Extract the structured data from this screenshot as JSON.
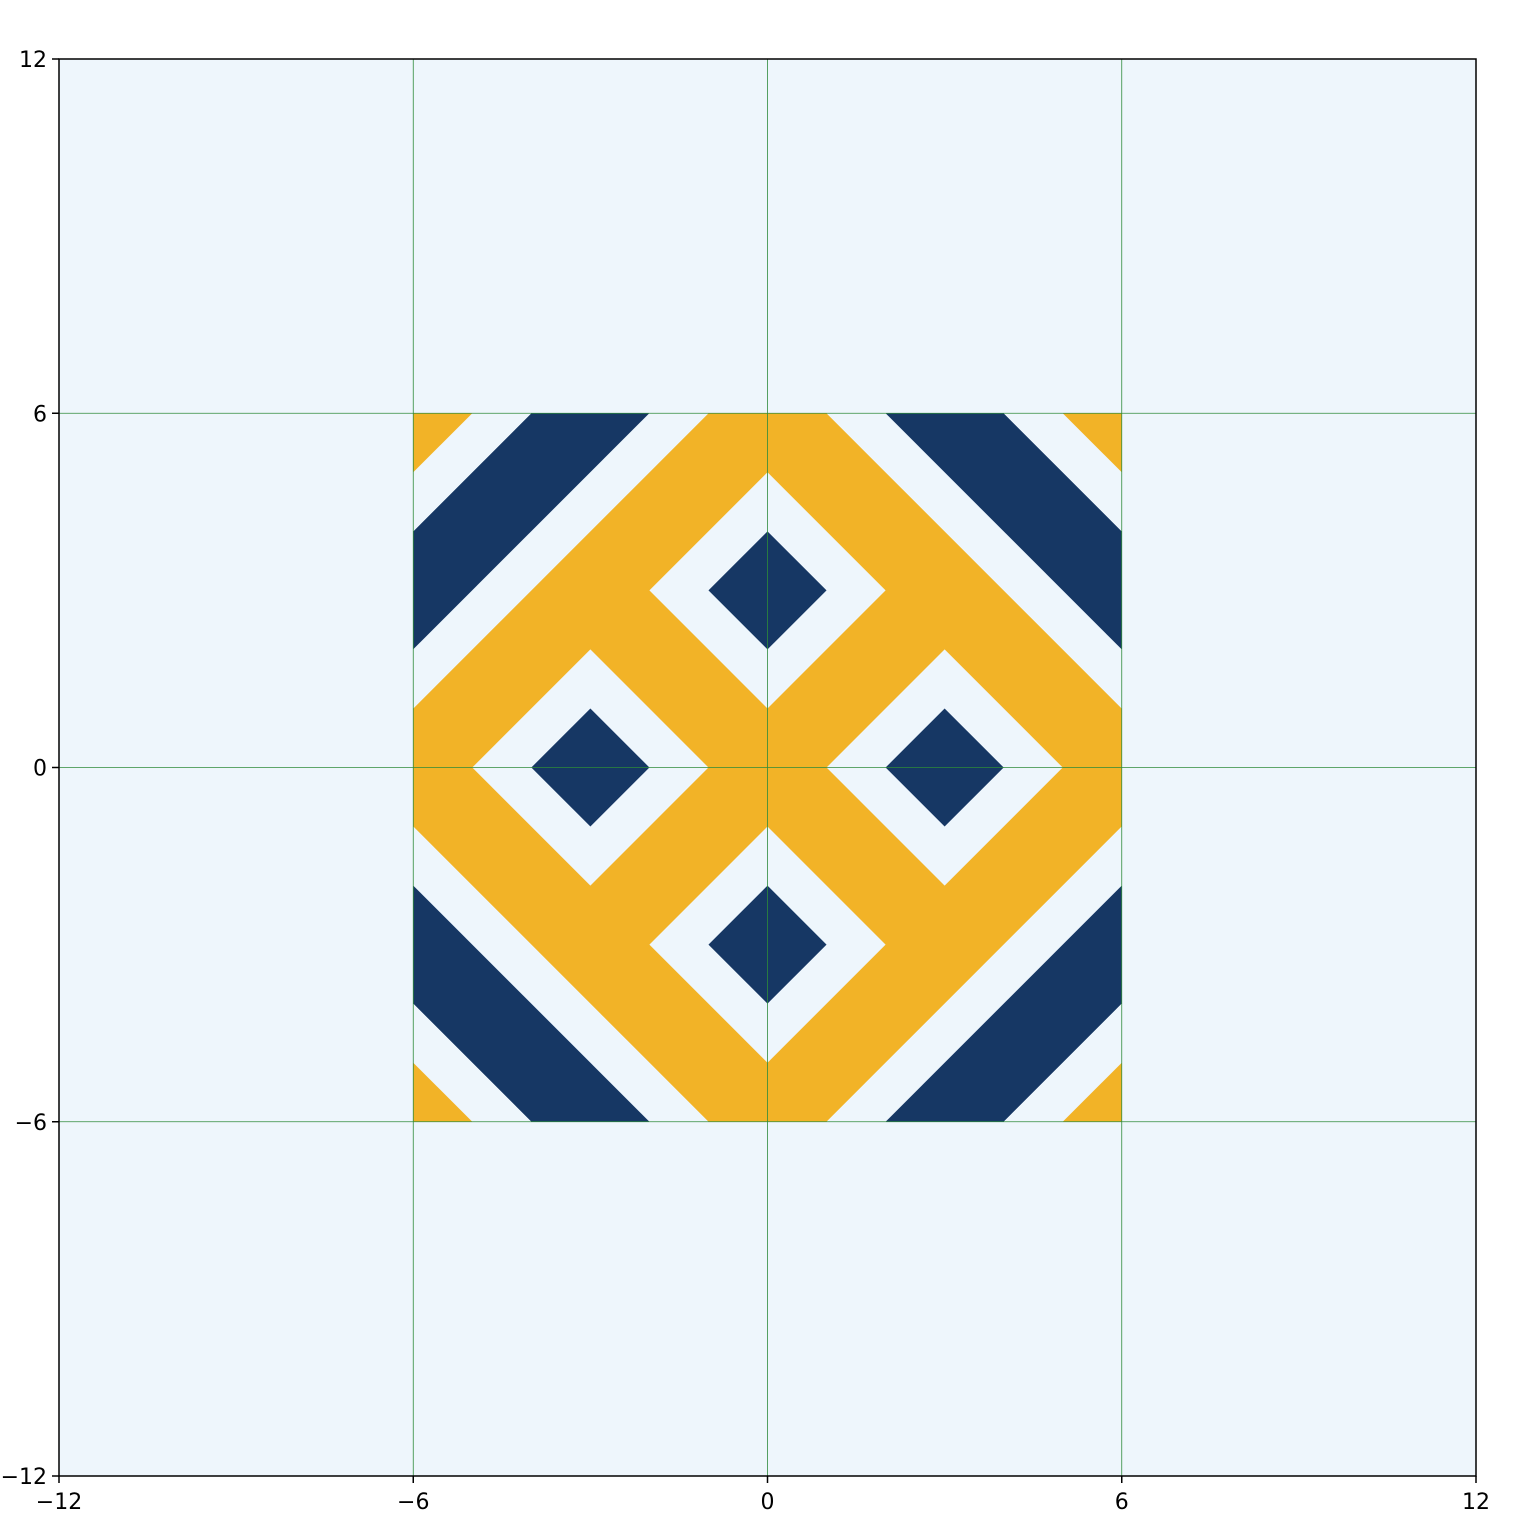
{
  "chart_data": {
    "type": "diagram",
    "title": "",
    "xlabel": "",
    "ylabel": "",
    "xlim": [
      -12,
      12
    ],
    "ylim": [
      -12,
      12
    ],
    "grid": true,
    "x_ticks": [
      {
        "value": -12,
        "label": "−12"
      },
      {
        "value": -6,
        "label": "−6"
      },
      {
        "value": 0,
        "label": "0"
      },
      {
        "value": 6,
        "label": "6"
      },
      {
        "value": 12,
        "label": "12"
      }
    ],
    "y_ticks": [
      {
        "value": -12,
        "label": "−12"
      },
      {
        "value": -6,
        "label": "−6"
      },
      {
        "value": 0,
        "label": "0"
      },
      {
        "value": 6,
        "label": "6"
      },
      {
        "value": 12,
        "label": "12"
      }
    ],
    "colors": {
      "background": "#eef6fc",
      "gold": "#f2b327",
      "navy": "#163764",
      "light": "#eef6fc",
      "grid": "#2e8b3a",
      "axis": "#000000"
    },
    "tile": {
      "x_range": [
        -6,
        6
      ],
      "y_range": [
        -6,
        6
      ],
      "layers": [
        {
          "name": "gold-band-outer",
          "color": "gold",
          "points": [
            [
              0,
              6
            ],
            [
              6,
              0
            ],
            [
              0,
              -6
            ],
            [
              -6,
              0
            ]
          ]
        },
        {
          "name": "gold-band-outer",
          "color": "gold",
          "points": [
            [
              -1,
              6
            ],
            [
              1,
              6
            ],
            [
              6,
              1
            ],
            [
              6,
              -1
            ],
            [
              1,
              -6
            ],
            [
              -1,
              -6
            ],
            [
              -6,
              -1
            ],
            [
              -6,
              1
            ]
          ]
        },
        {
          "name": "white-lane",
          "color": "light",
          "points": [
            [
              -4,
              6
            ],
            [
              -2,
              6
            ],
            [
              -6,
              2
            ],
            [
              -6,
              4
            ]
          ]
        },
        {
          "name": "navy-stripe",
          "color": "navy",
          "points": [
            [
              -4,
              6
            ],
            [
              -2,
              6
            ],
            [
              -6,
              2
            ],
            [
              -6,
              4
            ]
          ]
        },
        {
          "name": "white-lane",
          "color": "light",
          "points": [
            [
              -5,
              6
            ],
            [
              -4,
              6
            ],
            [
              -6,
              4
            ],
            [
              -6,
              5
            ]
          ]
        },
        {
          "name": "white-lane",
          "color": "light",
          "points": [
            [
              -2,
              6
            ],
            [
              -1,
              6
            ],
            [
              -6,
              1
            ],
            [
              -6,
              2
            ]
          ]
        },
        {
          "name": "gold-corner",
          "color": "gold",
          "points": [
            [
              -6,
              6
            ],
            [
              -5,
              6
            ],
            [
              -6,
              5
            ]
          ]
        },
        {
          "name": "white-lane",
          "color": "light",
          "points": [
            [
              2,
              6
            ],
            [
              1,
              6
            ],
            [
              6,
              1
            ],
            [
              6,
              2
            ]
          ]
        },
        {
          "name": "navy-stripe",
          "color": "navy",
          "points": [
            [
              2,
              6
            ],
            [
              4,
              6
            ],
            [
              6,
              4
            ],
            [
              6,
              2
            ]
          ]
        },
        {
          "name": "white-lane",
          "color": "light",
          "points": [
            [
              4,
              6
            ],
            [
              5,
              6
            ],
            [
              6,
              5
            ],
            [
              6,
              4
            ]
          ]
        },
        {
          "name": "gold-corner",
          "color": "gold",
          "points": [
            [
              5,
              6
            ],
            [
              6,
              6
            ],
            [
              6,
              5
            ]
          ]
        },
        {
          "name": "white-lane",
          "color": "light",
          "points": [
            [
              -6,
              -1
            ],
            [
              -1,
              -6
            ],
            [
              -2,
              -6
            ],
            [
              -6,
              -2
            ]
          ]
        },
        {
          "name": "navy-stripe",
          "color": "navy",
          "points": [
            [
              -6,
              -2
            ],
            [
              -2,
              -6
            ],
            [
              -4,
              -6
            ],
            [
              -6,
              -4
            ]
          ]
        },
        {
          "name": "white-lane",
          "color": "light",
          "points": [
            [
              -6,
              -4
            ],
            [
              -4,
              -6
            ],
            [
              -5,
              -6
            ],
            [
              -6,
              -5
            ]
          ]
        },
        {
          "name": "gold-corner",
          "color": "gold",
          "points": [
            [
              -6,
              -5
            ],
            [
              -5,
              -6
            ],
            [
              -6,
              -6
            ]
          ]
        },
        {
          "name": "white-lane",
          "color": "light",
          "points": [
            [
              6,
              -1
            ],
            [
              1,
              -6
            ],
            [
              2,
              -6
            ],
            [
              6,
              -2
            ]
          ]
        },
        {
          "name": "navy-stripe",
          "color": "navy",
          "points": [
            [
              6,
              -2
            ],
            [
              2,
              -6
            ],
            [
              4,
              -6
            ],
            [
              6,
              -4
            ]
          ]
        },
        {
          "name": "white-lane",
          "color": "light",
          "points": [
            [
              6,
              -4
            ],
            [
              4,
              -6
            ],
            [
              5,
              -6
            ],
            [
              6,
              -5
            ]
          ]
        },
        {
          "name": "gold-corner",
          "color": "gold",
          "points": [
            [
              6,
              -5
            ],
            [
              5,
              -6
            ],
            [
              6,
              -6
            ]
          ]
        },
        {
          "name": "white-diamond",
          "color": "light",
          "points": [
            [
              0,
              5
            ],
            [
              2,
              3
            ],
            [
              0,
              1
            ],
            [
              -2,
              3
            ]
          ]
        },
        {
          "name": "navy-diamond",
          "color": "navy",
          "points": [
            [
              0,
              4
            ],
            [
              1,
              3
            ],
            [
              0,
              2
            ],
            [
              -1,
              3
            ]
          ]
        },
        {
          "name": "white-diamond",
          "color": "light",
          "points": [
            [
              0,
              -1
            ],
            [
              2,
              -3
            ],
            [
              0,
              -5
            ],
            [
              -2,
              -3
            ]
          ]
        },
        {
          "name": "navy-diamond",
          "color": "navy",
          "points": [
            [
              0,
              -2
            ],
            [
              1,
              -3
            ],
            [
              0,
              -4
            ],
            [
              -1,
              -3
            ]
          ]
        },
        {
          "name": "white-diamond",
          "color": "light",
          "points": [
            [
              -3,
              2
            ],
            [
              -1,
              0
            ],
            [
              -3,
              -2
            ],
            [
              -5,
              0
            ]
          ]
        },
        {
          "name": "navy-diamond",
          "color": "navy",
          "points": [
            [
              -3,
              1
            ],
            [
              -2,
              0
            ],
            [
              -3,
              -1
            ],
            [
              -4,
              0
            ]
          ]
        },
        {
          "name": "white-diamond",
          "color": "light",
          "points": [
            [
              3,
              2
            ],
            [
              5,
              0
            ],
            [
              3,
              -2
            ],
            [
              1,
              0
            ]
          ]
        },
        {
          "name": "navy-diamond",
          "color": "navy",
          "points": [
            [
              3,
              1
            ],
            [
              4,
              0
            ],
            [
              3,
              -1
            ],
            [
              2,
              0
            ]
          ]
        }
      ]
    }
  }
}
